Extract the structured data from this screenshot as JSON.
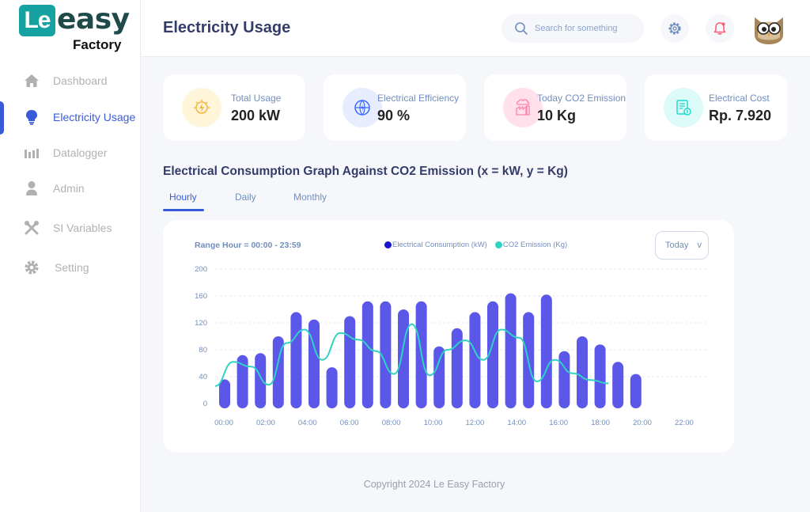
{
  "logo": {
    "mark": "Le",
    "word": "easy",
    "sub": "Factory"
  },
  "sidebar": {
    "items": [
      {
        "label": "Dashboard",
        "icon": "home-icon",
        "active": false
      },
      {
        "label": "Electricity Usage",
        "icon": "lightbulb-icon",
        "active": true
      },
      {
        "label": "Datalogger",
        "icon": "bar-chart-icon",
        "active": false
      },
      {
        "label": "Admin",
        "icon": "user-icon",
        "active": false
      },
      {
        "label": "SI Variables",
        "icon": "tools-icon",
        "active": false
      },
      {
        "label": "Setting",
        "icon": "gear-icon",
        "active": false
      }
    ]
  },
  "header": {
    "title": "Electricity Usage",
    "search_placeholder": "Search for something"
  },
  "cards": [
    {
      "label": "Total Usage",
      "value": "200 kW",
      "icon": "energy-icon",
      "color": "#fff5d9"
    },
    {
      "label": "Electrical Efficiency",
      "value": "90 %",
      "icon": "globe-energy-icon",
      "color": "#e7edff"
    },
    {
      "label": "Today CO2 Emission",
      "value": "10 Kg",
      "icon": "co2-factory-icon",
      "color": "#ffe0eb"
    },
    {
      "label": "Electrical Cost",
      "value": "Rp. 7.920",
      "icon": "bill-icon",
      "color": "#dcfaf8"
    }
  ],
  "section_title": "Electrical Consumption Graph Against CO2 Emission (x = kW, y = Kg)",
  "tabs": [
    {
      "label": "Hourly",
      "active": true
    },
    {
      "label": "Daily",
      "active": false
    },
    {
      "label": "Monthly",
      "active": false
    }
  ],
  "chart_panel": {
    "range_label": "Range Hour = 00:00 - 23:59",
    "select_value": "Today",
    "select_caret": "v"
  },
  "chart_data": {
    "type": "bar",
    "title": "",
    "xlabel": "",
    "ylabel": "",
    "ylim": [
      0,
      200
    ],
    "y_ticks": [
      "200",
      "160",
      "120",
      "80",
      "40",
      "0"
    ],
    "x_tick_labels": [
      "00:00",
      "02:00",
      "04:00",
      "06:00",
      "08:00",
      "10:00",
      "12:00",
      "14:00",
      "16:00",
      "18:00",
      "20:00",
      "22:00"
    ],
    "grid": true,
    "legend_position": "top-center",
    "categories": [
      "00:00",
      "01:00",
      "02:00",
      "03:00",
      "04:00",
      "05:00",
      "06:00",
      "07:00",
      "08:00",
      "09:00",
      "10:00",
      "11:00",
      "12:00",
      "13:00",
      "14:00",
      "15:00",
      "16:00",
      "17:00",
      "18:00",
      "19:00",
      "20:00",
      "21:00",
      "22:00",
      "23:00"
    ],
    "series": [
      {
        "name": "Electrical Consumption (kW)",
        "type": "bar",
        "color": "#5b57e8",
        "values": [
          36,
          72,
          75,
          100,
          136,
          125,
          54,
          130,
          152,
          152,
          140,
          152,
          85,
          112,
          136,
          152,
          164,
          136,
          162,
          78,
          100,
          88,
          62,
          44
        ]
      },
      {
        "name": "CO2 Emission (Kg)",
        "type": "line",
        "color": "#2fd3c3",
        "values": [
          26,
          62,
          55,
          28,
          90,
          110,
          65,
          105,
          95,
          78,
          44,
          118,
          42,
          80,
          94,
          65,
          110,
          98,
          33,
          65,
          45,
          35,
          30,
          null
        ]
      }
    ]
  },
  "legend_dot_colors": {
    "consumption": "#1a16c8",
    "co2": "#2fd3c3"
  },
  "footer": "Copyright 2024 Le Easy Factory"
}
